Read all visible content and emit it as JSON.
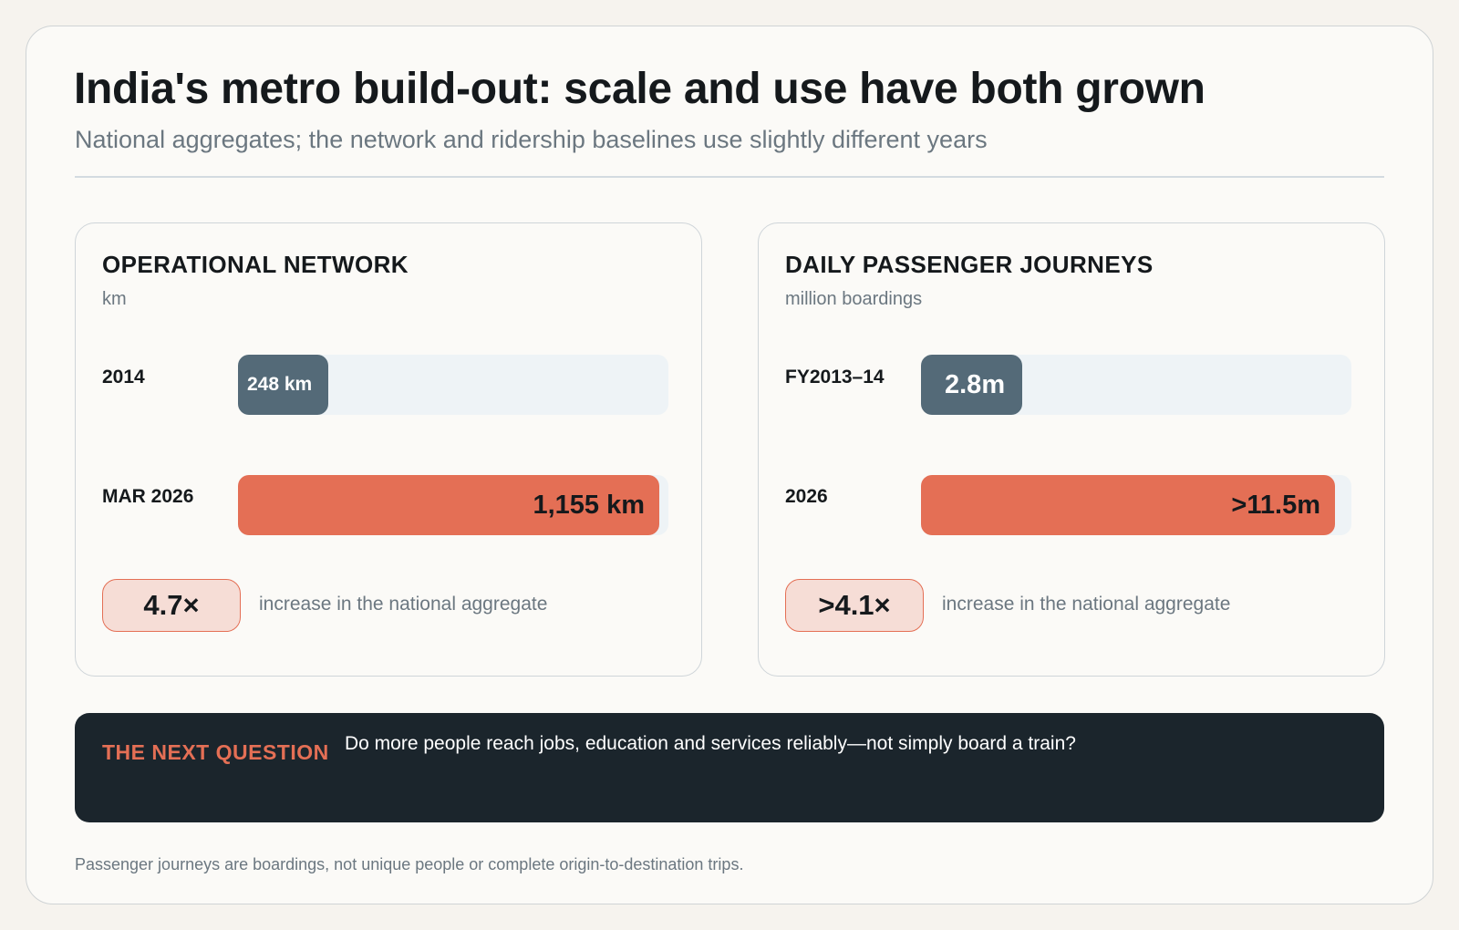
{
  "header": {
    "title": "India's metro build-out: scale and use have both grown",
    "subtitle": "National aggregates; the network and ridership baselines use slightly different years"
  },
  "chart_data": [
    {
      "type": "bar",
      "title": "OPERATIONAL NETWORK",
      "unit": "km",
      "categories": [
        "2014",
        "MAR 2026"
      ],
      "values": [
        248,
        1155
      ],
      "value_labels": [
        "248 km",
        "1,155 km"
      ],
      "xlim": [
        0,
        1180
      ],
      "multiplier": "4.7×",
      "multiplier_note": "increase in the national aggregate"
    },
    {
      "type": "bar",
      "title": "DAILY PASSENGER JOURNEYS",
      "unit": "million boardings",
      "categories": [
        "FY2013–14",
        "2026"
      ],
      "values": [
        2.8,
        11.5
      ],
      "value_labels": [
        "2.8m",
        ">11.5m"
      ],
      "xlim": [
        0,
        11.95
      ],
      "multiplier": ">4.1×",
      "multiplier_note": "increase in the national aggregate"
    }
  ],
  "question": {
    "label": "THE NEXT QUESTION",
    "text": "Do more people reach jobs, education and services reliably—not simply board a train?"
  },
  "footnote": "Passenger journeys are boardings, not unique people or complete origin-to-destination trips.",
  "colors": {
    "baseline_bar": "#546a78",
    "current_bar": "#e46f55",
    "track": "#eef3f6",
    "question_bg": "#1b252c"
  }
}
